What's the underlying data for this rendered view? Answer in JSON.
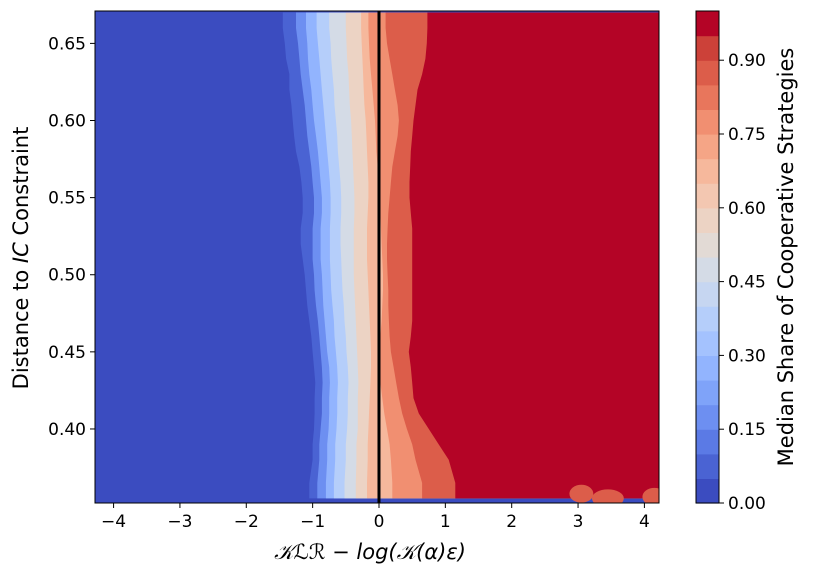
{
  "chart_data": {
    "type": "heatmap",
    "xlabel": "𝒦ℒℛ − log(𝒦(α)ε)",
    "ylabel_parts": [
      "Distance to ",
      "IC",
      " Constraint"
    ],
    "colorbar_label": "Median Share of Cooperative Strategies",
    "xlim": [
      -4.28,
      4.22
    ],
    "ylim": [
      0.352,
      0.671
    ],
    "xticks": [
      -4,
      -3,
      -2,
      -1,
      0,
      1,
      2,
      3,
      4
    ],
    "xtick_labels": [
      "−4",
      "−3",
      "−2",
      "−1",
      "0",
      "1",
      "2",
      "3",
      "4"
    ],
    "yticks": [
      0.4,
      0.45,
      0.5,
      0.55,
      0.6,
      0.65
    ],
    "ytick_labels": [
      "0.40",
      "0.45",
      "0.50",
      "0.55",
      "0.60",
      "0.65"
    ],
    "colorbar_ticks": [
      0.0,
      0.15,
      0.3,
      0.45,
      0.6,
      0.75,
      0.9
    ],
    "colorbar_tick_labels": [
      "0.00",
      "0.15",
      "0.30",
      "0.45",
      "0.60",
      "0.75",
      "0.90"
    ],
    "colorbar_range": [
      0.0,
      1.0
    ],
    "colormap": "coolwarm",
    "level_colors": [
      "#3b4cc0",
      "#4a63d3",
      "#5b7ae5",
      "#6d8ff1",
      "#7fa3f9",
      "#92b4fe",
      "#a4c2fe",
      "#b5cefa",
      "#c6d6f1",
      "#d4dbe6",
      "#e2dad5",
      "#ecd3c4",
      "#f3c7b1",
      "#f6b89c",
      "#f5a586",
      "#f18f71",
      "#e8765c",
      "#dc5d4a",
      "#cc4139",
      "#b40426"
    ],
    "boundary_line": {
      "x": 0,
      "color": "#000000"
    },
    "contour_y": [
      0.355,
      0.365,
      0.38,
      0.39,
      0.4,
      0.41,
      0.42,
      0.43,
      0.44,
      0.45,
      0.46,
      0.47,
      0.48,
      0.49,
      0.5,
      0.51,
      0.52,
      0.53,
      0.54,
      0.55,
      0.56,
      0.57,
      0.58,
      0.59,
      0.6,
      0.61,
      0.62,
      0.63,
      0.64,
      0.65,
      0.66,
      0.67
    ],
    "contour_levels": [
      0.05,
      0.15,
      0.25,
      0.35,
      0.45,
      0.55,
      0.65,
      0.75,
      0.85,
      0.95
    ],
    "contour_x": [
      [
        -1.05,
        -1.05,
        -1.0,
        -1.0,
        -0.98,
        -0.97,
        -0.97,
        -0.96,
        -0.98,
        -1.0,
        -1.02,
        -1.05,
        -1.08,
        -1.1,
        -1.12,
        -1.15,
        -1.18,
        -1.18,
        -1.15,
        -1.15,
        -1.17,
        -1.2,
        -1.25,
        -1.28,
        -1.3,
        -1.32,
        -1.35,
        -1.35,
        -1.4,
        -1.42,
        -1.45,
        -1.45
      ],
      [
        -0.93,
        -0.93,
        -0.9,
        -0.9,
        -0.88,
        -0.86,
        -0.86,
        -0.85,
        -0.86,
        -0.88,
        -0.9,
        -0.92,
        -0.95,
        -0.97,
        -0.98,
        -1.0,
        -1.0,
        -1.0,
        -0.98,
        -0.98,
        -1.0,
        -1.02,
        -1.05,
        -1.08,
        -1.1,
        -1.12,
        -1.15,
        -1.18,
        -1.2,
        -1.22,
        -1.25,
        -1.25
      ],
      [
        -0.8,
        -0.8,
        -0.78,
        -0.78,
        -0.76,
        -0.75,
        -0.75,
        -0.74,
        -0.75,
        -0.78,
        -0.8,
        -0.82,
        -0.84,
        -0.85,
        -0.86,
        -0.88,
        -0.88,
        -0.88,
        -0.86,
        -0.86,
        -0.88,
        -0.9,
        -0.92,
        -0.95,
        -0.98,
        -1.0,
        -1.02,
        -1.05,
        -1.07,
        -1.08,
        -1.1,
        -1.1
      ],
      [
        -0.68,
        -0.68,
        -0.66,
        -0.66,
        -0.64,
        -0.63,
        -0.63,
        -0.62,
        -0.63,
        -0.65,
        -0.67,
        -0.68,
        -0.7,
        -0.72,
        -0.73,
        -0.74,
        -0.74,
        -0.74,
        -0.73,
        -0.73,
        -0.74,
        -0.76,
        -0.78,
        -0.8,
        -0.82,
        -0.84,
        -0.86,
        -0.88,
        -0.9,
        -0.92,
        -0.94,
        -0.94
      ],
      [
        -0.52,
        -0.52,
        -0.5,
        -0.5,
        -0.48,
        -0.47,
        -0.47,
        -0.46,
        -0.47,
        -0.49,
        -0.5,
        -0.52,
        -0.53,
        -0.55,
        -0.56,
        -0.57,
        -0.58,
        -0.58,
        -0.57,
        -0.57,
        -0.58,
        -0.6,
        -0.62,
        -0.63,
        -0.65,
        -0.67,
        -0.68,
        -0.7,
        -0.72,
        -0.73,
        -0.75,
        -0.75
      ],
      [
        -0.35,
        -0.35,
        -0.34,
        -0.34,
        -0.32,
        -0.32,
        -0.32,
        -0.31,
        -0.32,
        -0.33,
        -0.34,
        -0.35,
        -0.36,
        -0.37,
        -0.38,
        -0.38,
        -0.38,
        -0.38,
        -0.37,
        -0.37,
        -0.38,
        -0.39,
        -0.4,
        -0.41,
        -0.42,
        -0.44,
        -0.45,
        -0.46,
        -0.48,
        -0.49,
        -0.5,
        -0.5
      ],
      [
        -0.18,
        -0.18,
        -0.17,
        -0.17,
        -0.16,
        -0.15,
        -0.14,
        -0.13,
        -0.12,
        -0.12,
        -0.13,
        -0.14,
        -0.15,
        -0.16,
        -0.17,
        -0.18,
        -0.18,
        -0.18,
        -0.17,
        -0.16,
        -0.16,
        -0.17,
        -0.18,
        -0.19,
        -0.2,
        -0.22,
        -0.23,
        -0.24,
        -0.25,
        -0.26,
        -0.27,
        -0.27
      ],
      [
        0.2,
        0.2,
        0.18,
        0.16,
        0.12,
        0.08,
        0.05,
        0.02,
        0.01,
        0.0,
        0.02,
        0.04,
        0.05,
        0.06,
        0.06,
        0.05,
        0.04,
        0.03,
        0.02,
        0.01,
        0.0,
        -0.02,
        -0.04,
        -0.05,
        -0.06,
        -0.08,
        -0.1,
        -0.12,
        -0.14,
        -0.15,
        -0.16,
        -0.16
      ],
      [
        0.65,
        0.65,
        0.55,
        0.5,
        0.42,
        0.35,
        0.3,
        0.26,
        0.22,
        0.18,
        0.16,
        0.15,
        0.14,
        0.14,
        0.13,
        0.12,
        0.12,
        0.13,
        0.14,
        0.16,
        0.18,
        0.2,
        0.24,
        0.28,
        0.3,
        0.28,
        0.24,
        0.2,
        0.16,
        0.12,
        0.1,
        0.1
      ],
      [
        1.15,
        1.15,
        1.05,
        0.9,
        0.75,
        0.6,
        0.52,
        0.5,
        0.48,
        0.45,
        0.48,
        0.5,
        0.5,
        0.5,
        0.5,
        0.5,
        0.5,
        0.5,
        0.48,
        0.46,
        0.46,
        0.47,
        0.48,
        0.5,
        0.52,
        0.55,
        0.58,
        0.65,
        0.7,
        0.72,
        0.73,
        0.73
      ]
    ],
    "speckle_note": "small red-tinted islands near the bottom-right corner"
  }
}
